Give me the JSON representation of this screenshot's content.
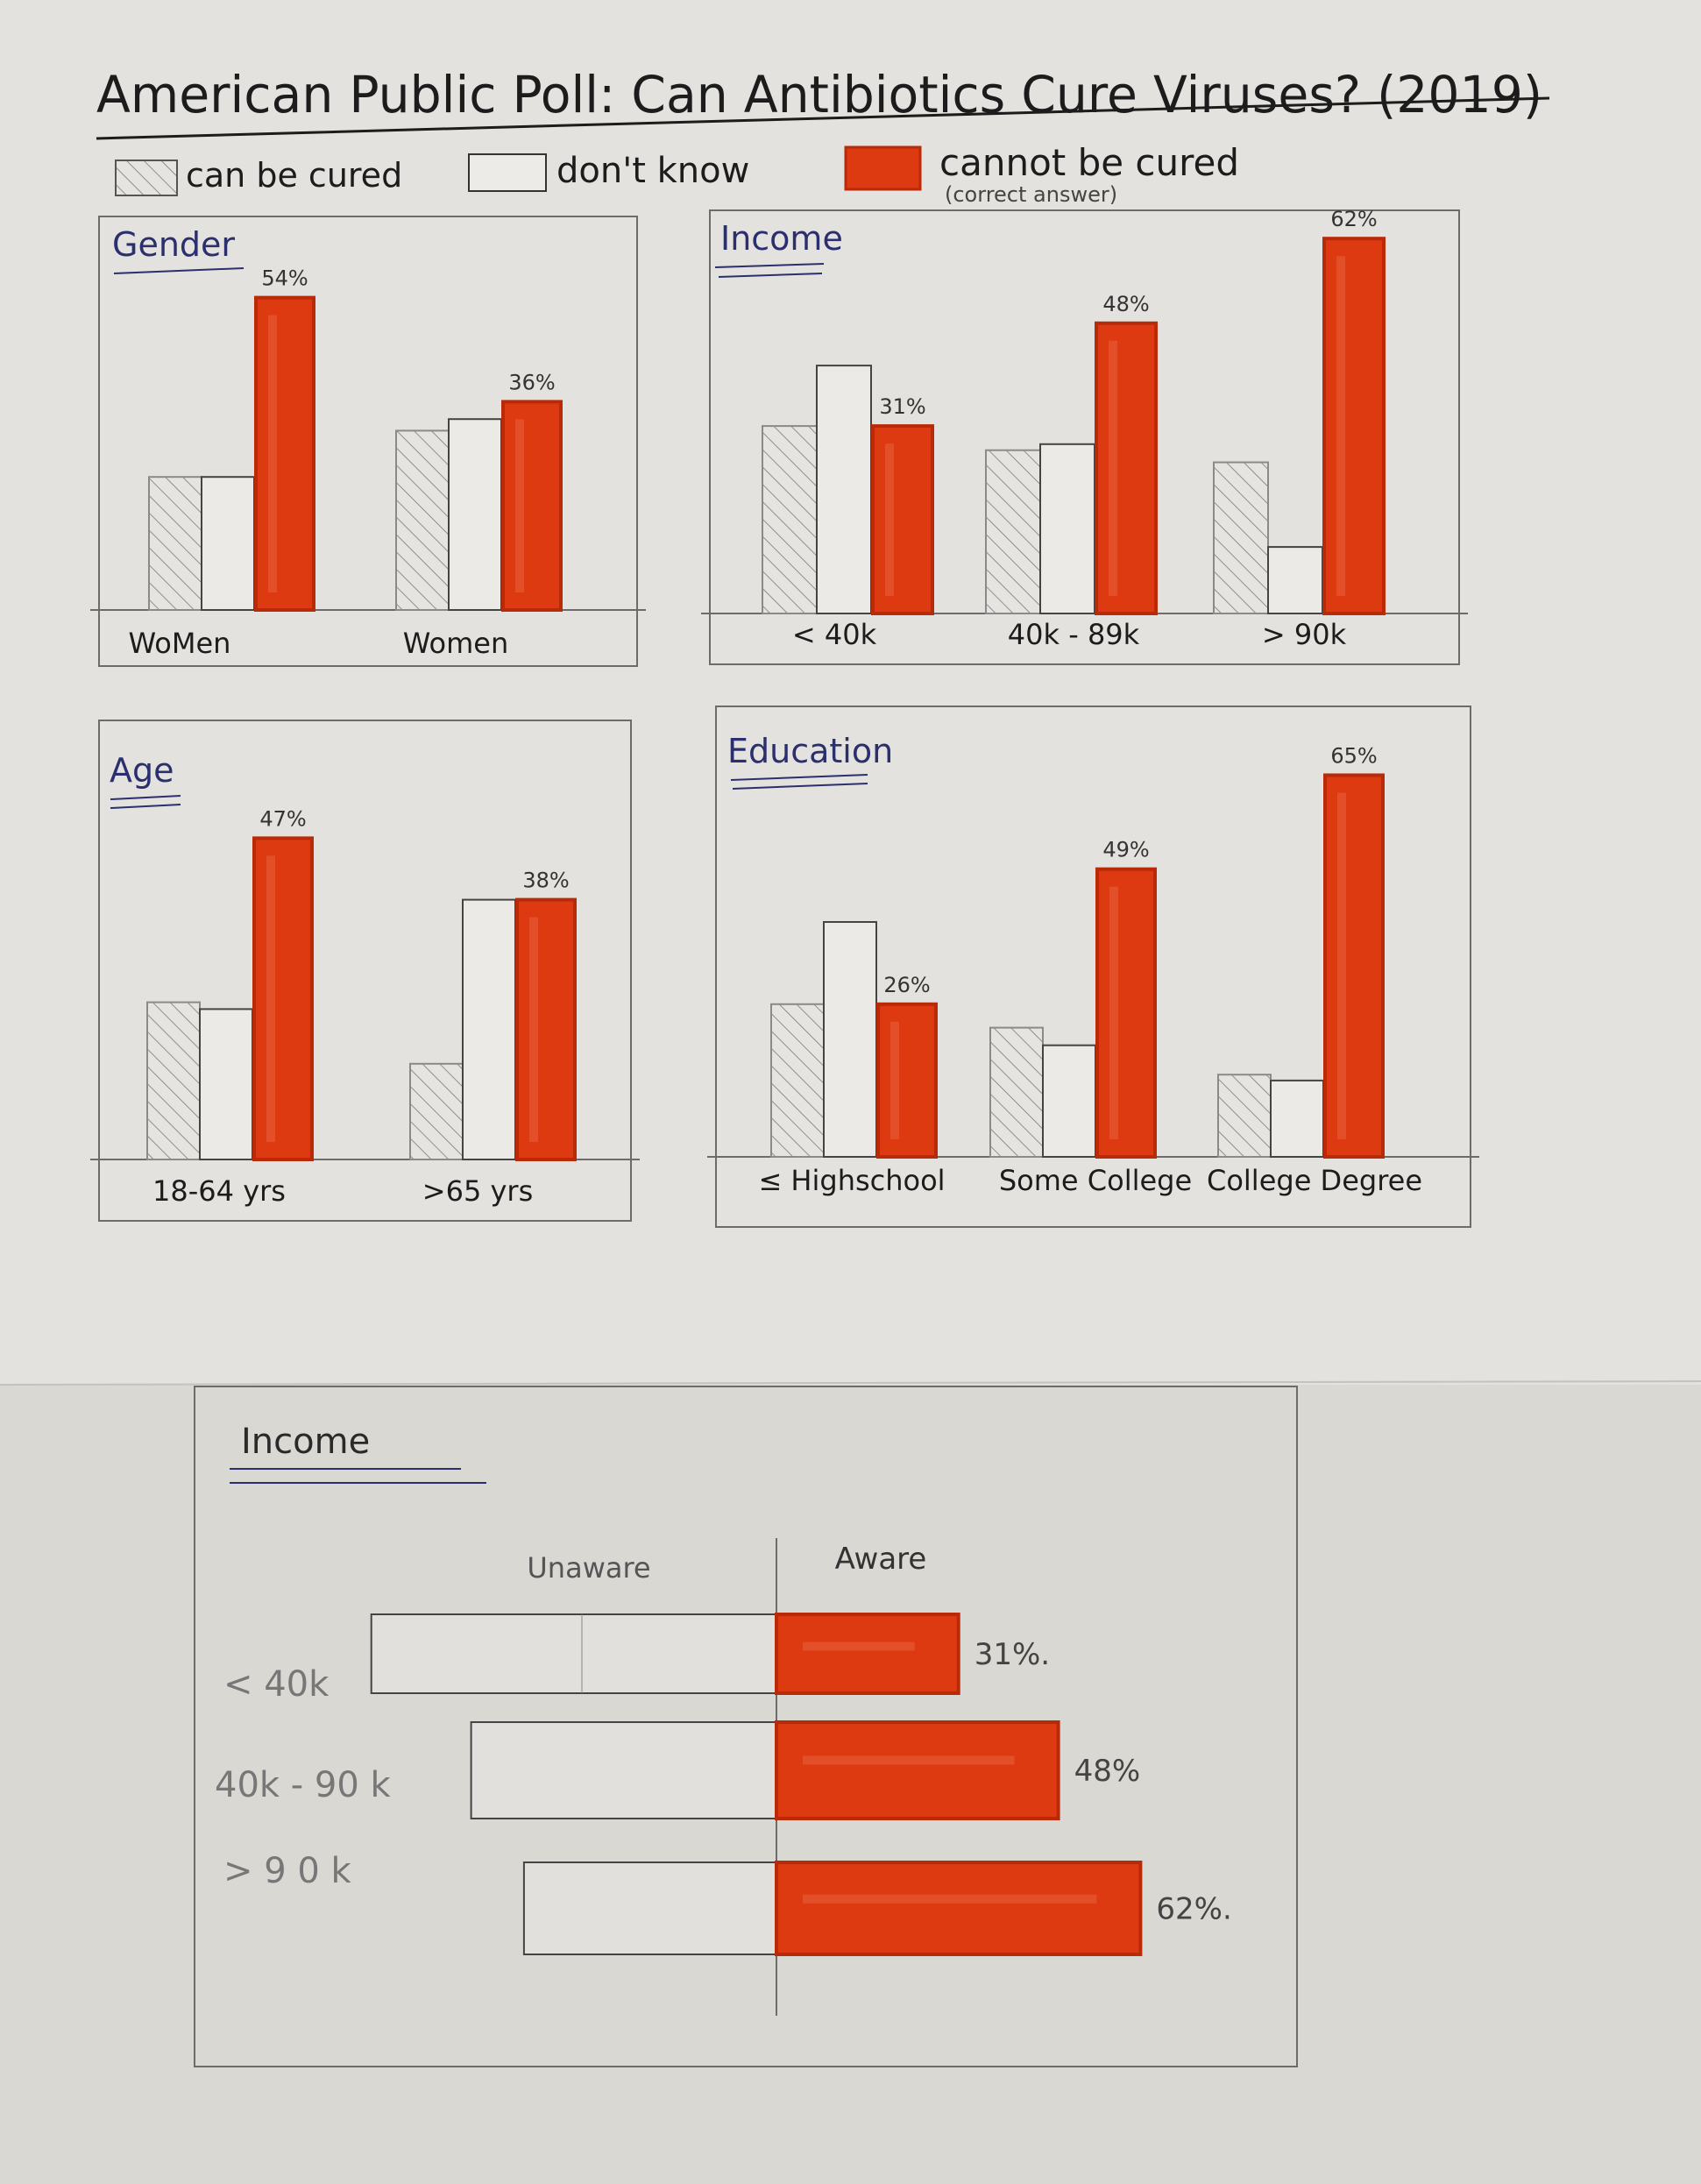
{
  "title": "American Public Poll: Can Antibiotics Cure Viruses? (2019)",
  "colors": {
    "paper_top": "#e4e2de",
    "paper_bottom": "#dcdad5",
    "accent": "#dd3a12",
    "accent_dark": "#b82a08",
    "ink": "#1c1c1c",
    "pencil": "#6c6c6c",
    "title_ink": "#2b2f6e"
  },
  "legend": {
    "items": [
      {
        "label": "can be cured",
        "swatch": "hatched"
      },
      {
        "label": "don't know",
        "swatch": "empty"
      },
      {
        "label": "cannot be cured",
        "swatch": "filled"
      }
    ],
    "note": "(correct answer)"
  },
  "chart_data": [
    {
      "type": "bar",
      "title": "Gender",
      "categories": [
        "WoMen",
        "Women"
      ],
      "series": [
        {
          "name": "can be cured",
          "values": [
            23,
            31
          ]
        },
        {
          "name": "don't know",
          "values": [
            23,
            33
          ]
        },
        {
          "name": "cannot be cured",
          "values": [
            54,
            36
          ]
        }
      ],
      "data_labels": [
        "54%",
        "36%"
      ]
    },
    {
      "type": "bar",
      "title": "Income",
      "categories": [
        "< 40k",
        "40k - 89k",
        "> 90k"
      ],
      "series": [
        {
          "name": "can be cured",
          "values": [
            31,
            27,
            25
          ]
        },
        {
          "name": "don't know",
          "values": [
            41,
            28,
            11
          ]
        },
        {
          "name": "cannot be cured",
          "values": [
            31,
            48,
            62
          ]
        }
      ],
      "data_labels": [
        "31%",
        "48%",
        "62%"
      ]
    },
    {
      "type": "bar",
      "title": "Age",
      "categories": [
        "18-64 yrs",
        ">65 yrs"
      ],
      "series": [
        {
          "name": "can be cured",
          "values": [
            23,
            14
          ]
        },
        {
          "name": "don't know",
          "values": [
            22,
            38
          ]
        },
        {
          "name": "cannot be cured",
          "values": [
            47,
            38
          ]
        }
      ],
      "data_labels": [
        "47%",
        "38%"
      ]
    },
    {
      "type": "bar",
      "title": "Education",
      "categories": [
        "≤ Highschool",
        "Some College",
        "College Degree"
      ],
      "series": [
        {
          "name": "can be cured",
          "values": [
            26,
            22,
            14
          ]
        },
        {
          "name": "don't know",
          "values": [
            40,
            19,
            13
          ]
        },
        {
          "name": "cannot be cured",
          "values": [
            26,
            49,
            65
          ]
        }
      ],
      "data_labels": [
        "26%",
        "49%",
        "65%"
      ]
    },
    {
      "type": "bar",
      "orientation": "horizontal",
      "title": "Income",
      "left_label": "Unaware",
      "right_label": "Aware",
      "categories": [
        "< 40k",
        "40k - 90 k",
        "> 9 0 k"
      ],
      "series": [
        {
          "name": "Unaware",
          "values": [
            69,
            52,
            43
          ]
        },
        {
          "name": "Aware",
          "values": [
            31,
            48,
            62
          ]
        }
      ],
      "data_labels": [
        "31%.",
        "48%",
        "62%."
      ]
    }
  ]
}
